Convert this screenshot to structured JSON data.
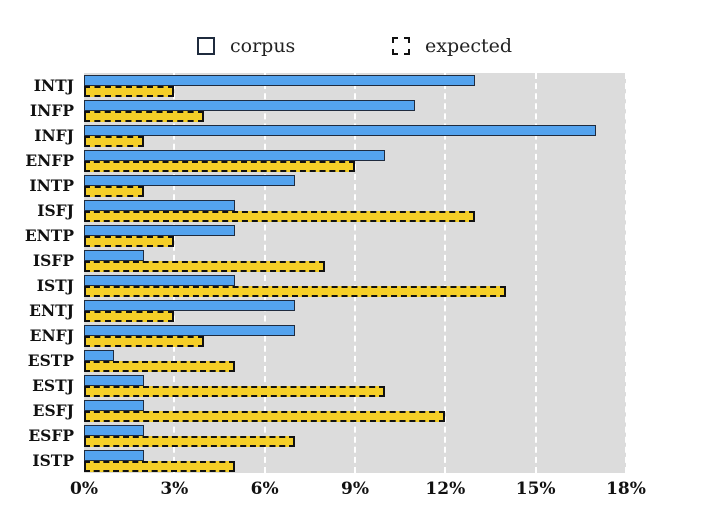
{
  "legend": {
    "items": [
      {
        "key": "corpus",
        "label": "corpus",
        "color": "#54a3ee",
        "border_style": "solid"
      },
      {
        "key": "expected",
        "label": "expected",
        "color": "#f5cf28",
        "border_style": "dashed"
      }
    ],
    "position": "top"
  },
  "chart_data": {
    "type": "bar",
    "orientation": "horizontal",
    "title": "",
    "xlabel": "",
    "ylabel": "",
    "categories": [
      "INTJ",
      "INFP",
      "INFJ",
      "ENFP",
      "INTP",
      "ISFJ",
      "ENTP",
      "ISFP",
      "ISTJ",
      "ENTJ",
      "ENFJ",
      "ESTP",
      "ESTJ",
      "ESFJ",
      "ESFP",
      "ISTP"
    ],
    "series": [
      {
        "name": "corpus",
        "values": [
          13,
          11,
          17,
          10,
          7,
          5,
          5,
          2,
          5,
          7,
          7,
          1,
          2,
          2,
          2,
          2
        ]
      },
      {
        "name": "expected",
        "values": [
          3,
          4,
          2,
          9,
          2,
          13,
          3,
          8,
          14,
          3,
          4,
          5,
          10,
          12,
          7,
          5
        ]
      }
    ],
    "unit": "%",
    "xlim": [
      0,
      18
    ],
    "x_tick_values": [
      0,
      3,
      6,
      9,
      12,
      15,
      18
    ],
    "x_ticks": [
      "0%",
      "3%",
      "6%",
      "9%",
      "12%",
      "15%",
      "18%"
    ],
    "grid": "vertical dashed white gridlines on light gray plot background",
    "plot_background": "#dcdcdc",
    "gridline_color": "#ffffff",
    "legend_position": "top"
  },
  "colors": {
    "corpus_fill": "#54a3ee",
    "corpus_border": "#1f2b3e",
    "expected_fill": "#f5cf28",
    "expected_border": "#111111",
    "plot_background": "#dcdcdc",
    "page_background": "#ffffff",
    "text": "#111111"
  }
}
